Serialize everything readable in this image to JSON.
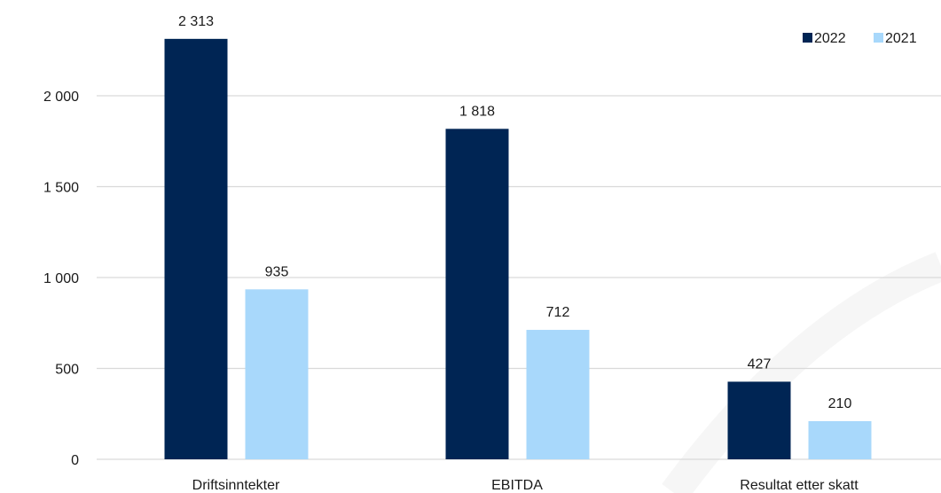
{
  "chart_data": {
    "type": "bar",
    "categories": [
      "Driftsinntekter",
      "EBITDA",
      "Resultat etter skatt"
    ],
    "series": [
      {
        "name": "2022",
        "values": [
          2313,
          1818,
          427
        ],
        "labels": [
          "2 313",
          "1 818",
          "427"
        ],
        "color": "#002554"
      },
      {
        "name": "2021",
        "values": [
          935,
          712,
          210
        ],
        "labels": [
          "935",
          "712",
          "210"
        ],
        "color": "#a8d8fb"
      }
    ],
    "yticks": [
      0,
      500,
      1000,
      1500,
      2000
    ],
    "ytick_labels": [
      "0",
      "500",
      "1 000",
      "1 500",
      "2 000"
    ],
    "ylim": [
      0,
      2400
    ],
    "grid": true,
    "legend_position": "top-right",
    "gridline_color": "#d9d9d9"
  }
}
